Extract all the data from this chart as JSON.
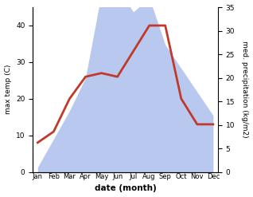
{
  "months": [
    "Jan",
    "Feb",
    "Mar",
    "Apr",
    "May",
    "Jun",
    "Jul",
    "Aug",
    "Sep",
    "Oct",
    "Nov",
    "Dec"
  ],
  "temp": [
    8,
    11,
    20,
    26,
    27,
    26,
    33,
    40,
    40,
    20,
    13,
    13
  ],
  "precip": [
    1,
    7,
    13,
    20,
    38,
    39,
    34,
    37,
    27,
    22,
    17,
    12
  ],
  "temp_color": "#c0392b",
  "precip_fill_color": "#b8c8ee",
  "precip_fill_alpha": 1.0,
  "temp_ylim": [
    0,
    45
  ],
  "precip_ylim": [
    0,
    35
  ],
  "temp_yticks": [
    0,
    10,
    20,
    30,
    40
  ],
  "precip_yticks": [
    0,
    5,
    10,
    15,
    20,
    25,
    30,
    35
  ],
  "ylabel_left": "max temp (C)",
  "ylabel_right": "med. precipitation (kg/m2)",
  "xlabel": "date (month)",
  "bg_color": "#ffffff",
  "line_width": 2.0
}
